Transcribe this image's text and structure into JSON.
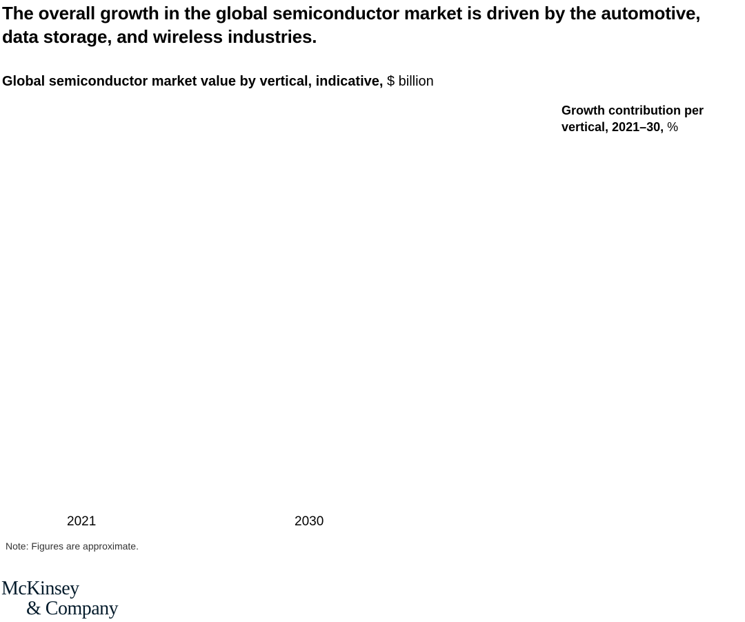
{
  "title": "The overall growth in the global semiconductor market is driven by the automotive, data storage, and wireless industries.",
  "subtitle": {
    "bold": "Global semiconductor market value by vertical, indicative,",
    "unit": "$ billion"
  },
  "right_panel": {
    "bold": "Growth contribution per vertical, 2021–30,",
    "unit": "%"
  },
  "chart_data": {
    "type": "bar",
    "categories": [
      "2021",
      "2030"
    ],
    "series": [],
    "title": "Global semiconductor market value by vertical, indicative",
    "ylabel": "$ billion"
  },
  "note": "Note: Figures are approximate.",
  "logo": {
    "line1": "McKinsey",
    "line2": "& Company"
  }
}
